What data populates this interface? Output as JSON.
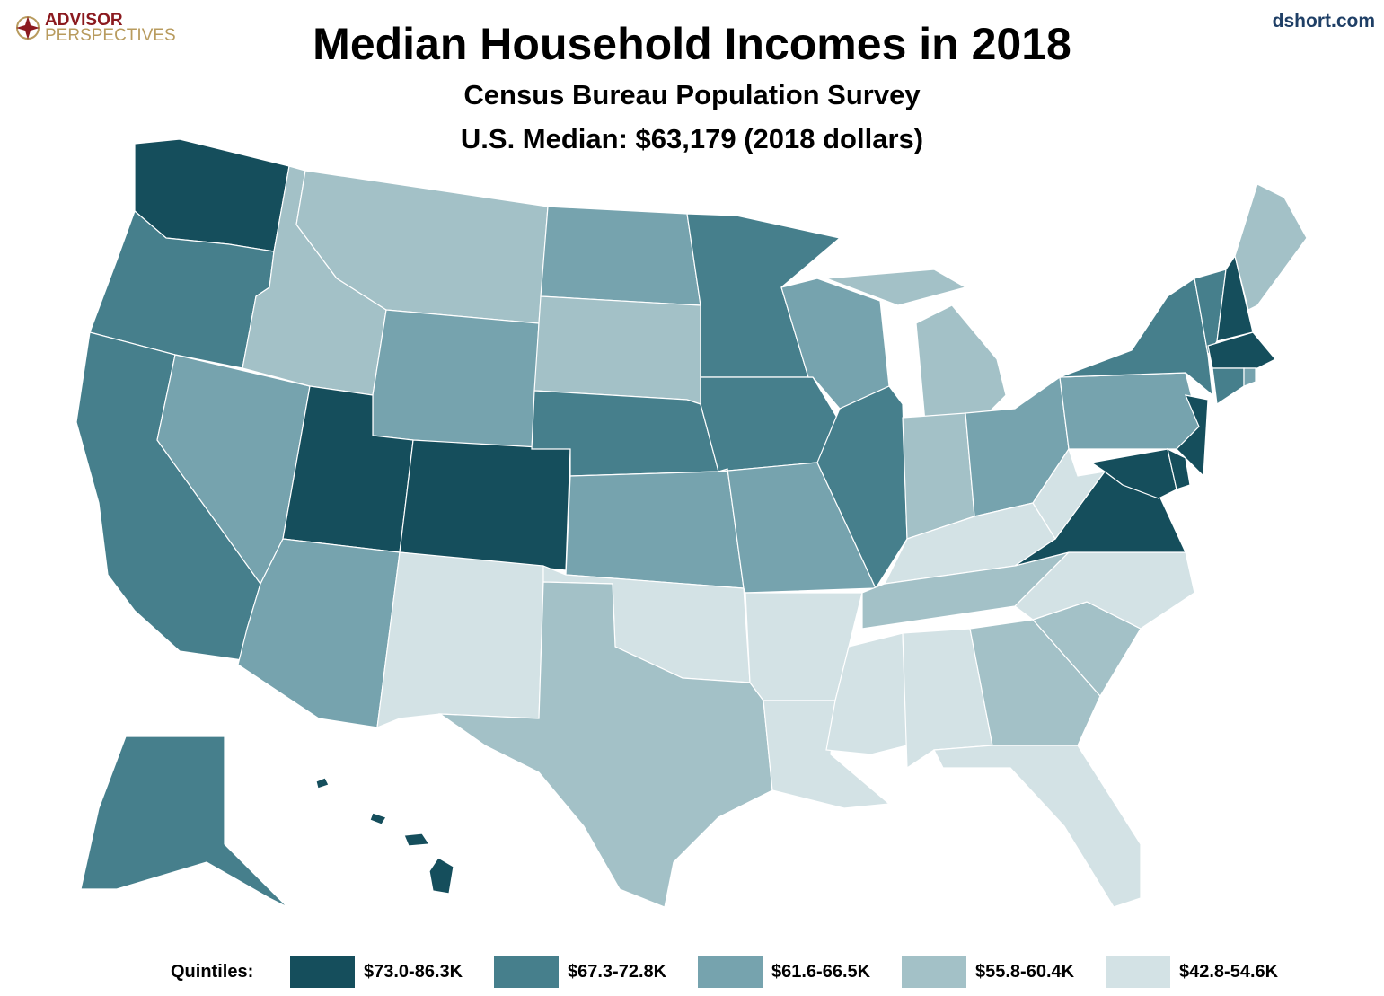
{
  "header": {
    "logo_line1": "ADVISOR",
    "logo_line2": "PERSPECTIVES",
    "site": "dshort.com",
    "title": "Median Household Incomes in 2018",
    "subtitle": "Census Bureau Population Survey",
    "subtitle2": "U.S. Median: $63,179 (2018 dollars)"
  },
  "legend": {
    "label": "Quintiles:",
    "items": [
      {
        "label": "$73.0-86.3K",
        "color": "#154e5c"
      },
      {
        "label": "$67.3-72.8K",
        "color": "#467f8c"
      },
      {
        "label": "$61.6-66.5K",
        "color": "#76a3ae"
      },
      {
        "label": "$55.8-60.4K",
        "color": "#a3c1c7"
      },
      {
        "label": "$42.8-54.6K",
        "color": "#d3e2e5"
      }
    ]
  },
  "map_data": {
    "quintile_by_state": {
      "WA": 1,
      "UT": 1,
      "CO": 1,
      "NH": 1,
      "MA": 1,
      "NJ": 1,
      "MD": 1,
      "VA": 1,
      "HI": 1,
      "DE": 1,
      "OR": 2,
      "CA": 2,
      "MN": 2,
      "NE": 2,
      "IA": 2,
      "IL": 2,
      "NY": 2,
      "VT": 2,
      "CT": 2,
      "AK": 2,
      "NV": 3,
      "AZ": 3,
      "WY": 3,
      "ND": 3,
      "KS": 3,
      "MO": 3,
      "WI": 3,
      "OH": 3,
      "PA": 3,
      "RI": 3,
      "ID": 4,
      "MT": 4,
      "SD": 4,
      "TX": 4,
      "MI": 4,
      "IN": 4,
      "TN": 4,
      "GA": 4,
      "SC": 4,
      "ME": 4,
      "NM": 5,
      "OK": 5,
      "AR": 5,
      "LA": 5,
      "MS": 5,
      "AL": 5,
      "FL": 5,
      "NC": 5,
      "KY": 5,
      "WV": 5
    }
  }
}
